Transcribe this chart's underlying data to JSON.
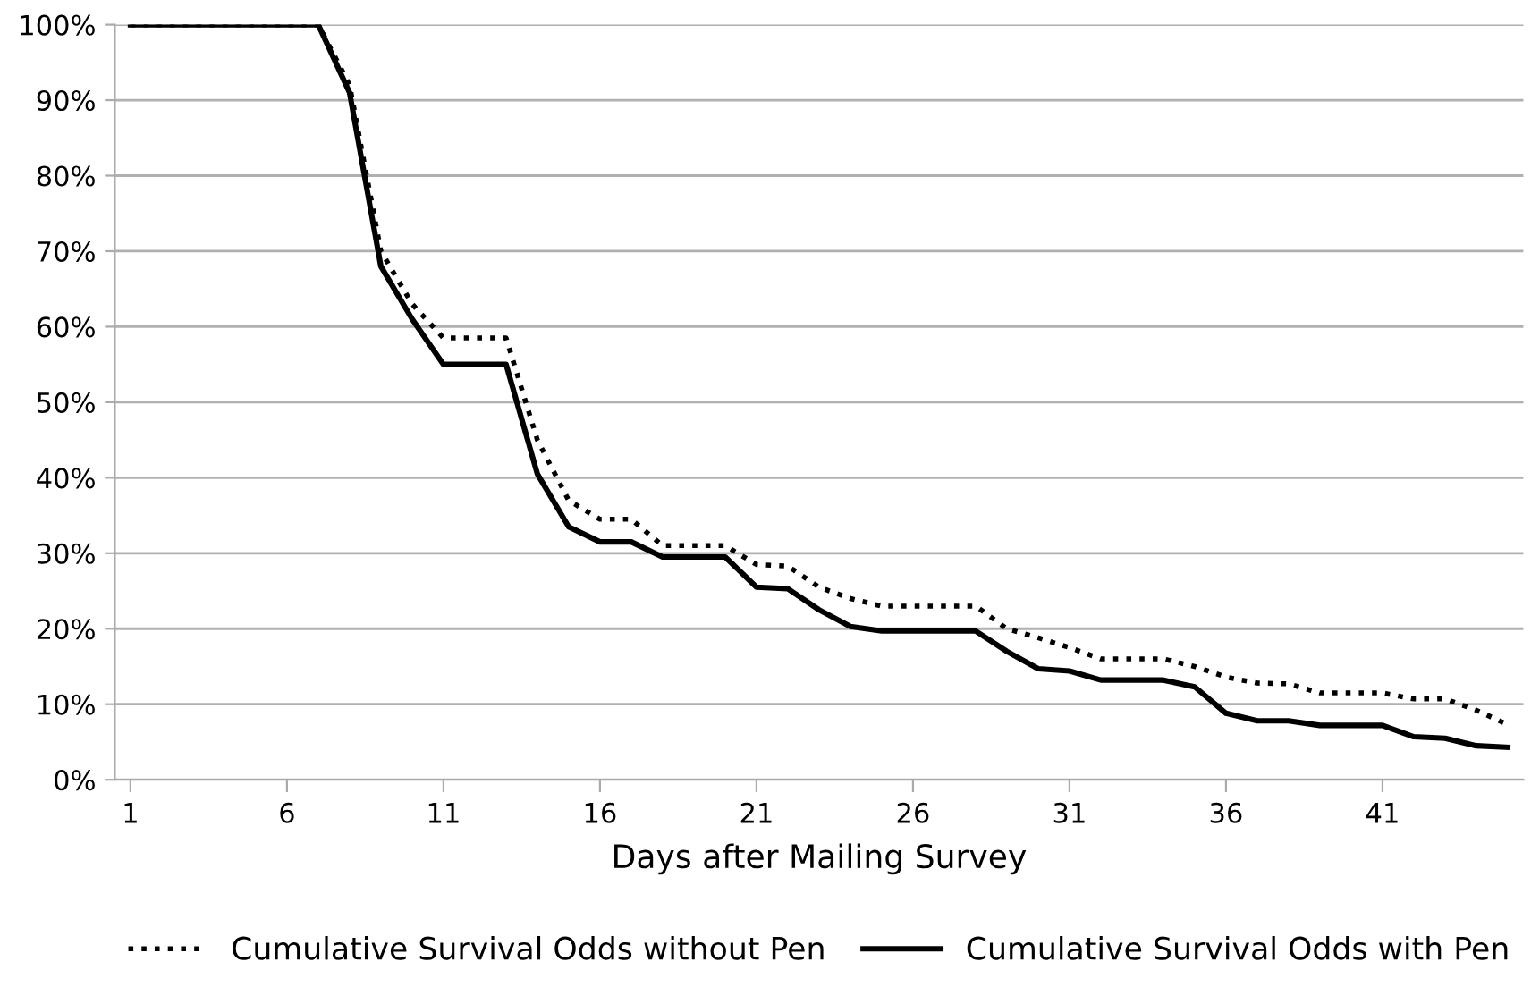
{
  "chart_data": {
    "type": "line",
    "xlabel": "Days after Mailing Survey",
    "x": [
      1,
      2,
      3,
      4,
      5,
      6,
      7,
      8,
      9,
      10,
      11,
      12,
      13,
      14,
      15,
      16,
      17,
      18,
      19,
      20,
      21,
      22,
      23,
      24,
      25,
      26,
      27,
      28,
      29,
      30,
      31,
      32,
      33,
      34,
      35,
      36,
      37,
      38,
      39,
      40,
      41,
      42,
      43,
      44,
      45
    ],
    "series": [
      {
        "name": "Cumulative Survival Odds without Pen",
        "color": "#000000",
        "line_style": "dotted",
        "values": [
          100,
          100,
          100,
          100,
          100,
          100,
          100,
          92,
          70,
          63,
          58.5,
          58.5,
          58.5,
          45,
          37,
          34.5,
          34.5,
          31,
          31,
          31,
          28.5,
          28.3,
          25.5,
          24,
          23,
          23,
          23,
          23,
          20,
          18.8,
          17.5,
          16,
          16,
          16,
          15,
          13.6,
          12.8,
          12.7,
          11.5,
          11.5,
          11.5,
          10.7,
          10.7,
          9.2,
          7.3
        ]
      },
      {
        "name": "Cumulative Survival Odds with Pen",
        "color": "#000000",
        "line_style": "solid",
        "values": [
          100,
          100,
          100,
          100,
          100,
          100,
          100,
          91,
          68,
          61,
          55,
          55,
          55,
          40.5,
          33.5,
          31.5,
          31.5,
          29.5,
          29.5,
          29.5,
          25.5,
          25.3,
          22.5,
          20.3,
          19.7,
          19.7,
          19.7,
          19.7,
          17,
          14.7,
          14.4,
          13.2,
          13.2,
          13.2,
          12.3,
          8.8,
          7.8,
          7.8,
          7.2,
          7.2,
          7.2,
          5.7,
          5.5,
          4.5,
          4.3
        ]
      }
    ],
    "xlim": [
      0.5,
      45.5
    ],
    "xticks": [
      1,
      6,
      11,
      16,
      21,
      26,
      31,
      36,
      41
    ],
    "ylim": [
      0,
      100
    ],
    "yticks": [
      {
        "value": 0,
        "label": "0%"
      },
      {
        "value": 10,
        "label": "10%"
      },
      {
        "value": 20,
        "label": "20%"
      },
      {
        "value": 30,
        "label": "30%"
      },
      {
        "value": 40,
        "label": "40%"
      },
      {
        "value": 50,
        "label": "50%"
      },
      {
        "value": 60,
        "label": "60%"
      },
      {
        "value": 70,
        "label": "70%"
      },
      {
        "value": 80,
        "label": "80%"
      },
      {
        "value": 90,
        "label": "90%"
      },
      {
        "value": 100,
        "label": "100%"
      }
    ],
    "grid": "y",
    "legend": "bottom",
    "marker": "none"
  }
}
